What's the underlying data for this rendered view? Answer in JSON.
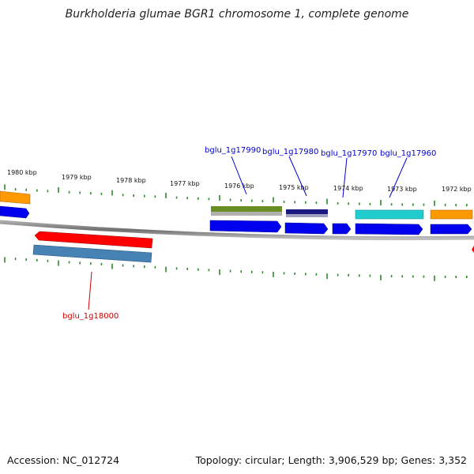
{
  "title": "Burkholderia glumae BGR1 chromosome 1, complete genome",
  "footer": {
    "accession": "Accession: NC_012724",
    "stats": "Topology: circular; Length: 3,906,529 bp; Genes: 3,352"
  },
  "colors": {
    "backbone": "#7a7a7a",
    "tick": "#2e8b2e",
    "label_forward": "#0000cc",
    "label_reverse": "#cc0000"
  },
  "kbp_labels": [
    {
      "text": "1980 kbp",
      "kbp": 1980
    },
    {
      "text": "1979 kbp",
      "kbp": 1979
    },
    {
      "text": "1978 kbp",
      "kbp": 1978
    },
    {
      "text": "1977 kbp",
      "kbp": 1977
    },
    {
      "text": "1976 kbp",
      "kbp": 1976
    },
    {
      "text": "1975 kbp",
      "kbp": 1975
    },
    {
      "text": "1974 kbp",
      "kbp": 1974
    },
    {
      "text": "1973 kbp",
      "kbp": 1973
    },
    {
      "text": "1972 kbp",
      "kbp": 1972
    }
  ],
  "gene_labels": [
    {
      "text": "bglu_1g17990",
      "strand": "forward"
    },
    {
      "text": "bglu_1g17980",
      "strand": "forward"
    },
    {
      "text": "bglu_1g17970",
      "strand": "forward"
    },
    {
      "text": "bglu_1g17960",
      "strand": "forward"
    },
    {
      "text": "bglu_1g18000",
      "strand": "reverse"
    }
  ]
}
